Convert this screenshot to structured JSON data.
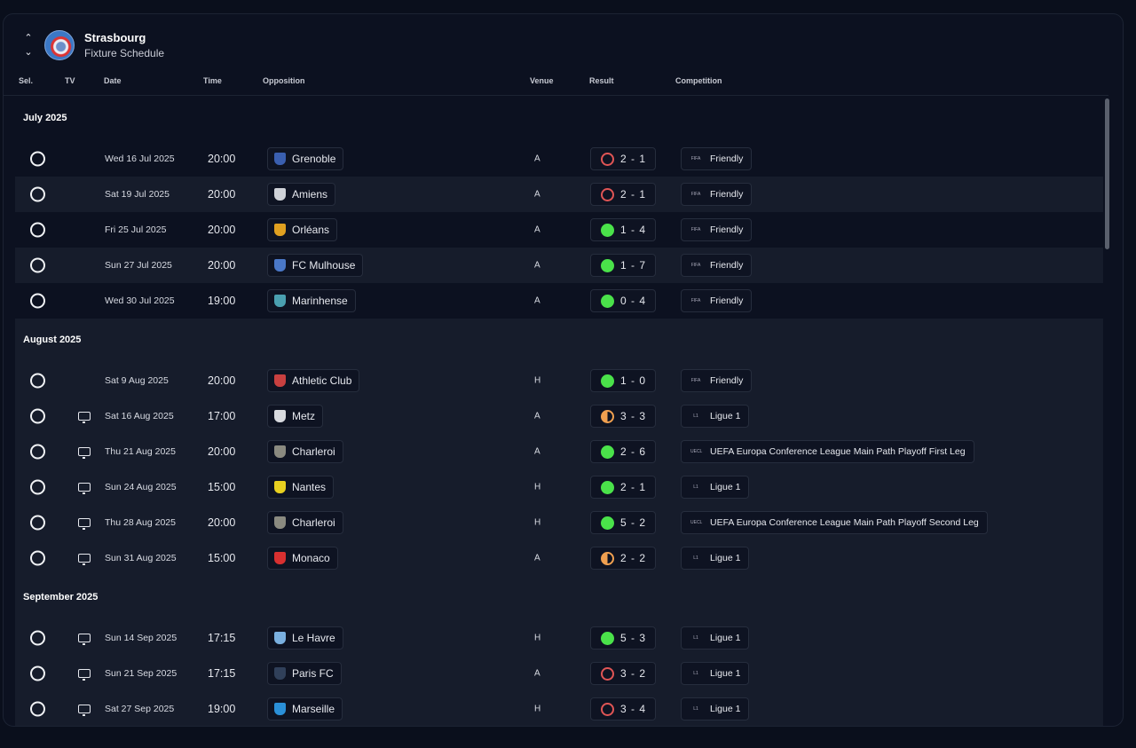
{
  "header": {
    "club": "Strasbourg",
    "subtitle": "Fixture Schedule"
  },
  "columns": {
    "sel": "Sel.",
    "tv": "TV",
    "date": "Date",
    "time": "Time",
    "opposition": "Opposition",
    "venue": "Venue",
    "result": "Result",
    "competition": "Competition"
  },
  "colors": {
    "win": "#4ae24a",
    "loss": "#e05555",
    "draw": "#f0a050"
  },
  "months": [
    {
      "label": "July 2025",
      "fixtures": [
        {
          "tv": false,
          "date": "Wed 16 Jul 2025",
          "time": "20:00",
          "opp": "Grenoble",
          "crest": "#3a5fb0",
          "venue": "A",
          "result": "2 - 1",
          "outcome": "loss",
          "comp": "Friendly",
          "logo": "FIFA"
        },
        {
          "tv": false,
          "date": "Sat 19 Jul 2025",
          "time": "20:00",
          "opp": "Amiens",
          "crest": "#cfd2d8",
          "venue": "A",
          "result": "2 - 1",
          "outcome": "loss",
          "comp": "Friendly",
          "logo": "FIFA"
        },
        {
          "tv": false,
          "date": "Fri 25 Jul 2025",
          "time": "20:00",
          "opp": "Orléans",
          "crest": "#e0a020",
          "venue": "A",
          "result": "1 - 4",
          "outcome": "win",
          "comp": "Friendly",
          "logo": "FIFA"
        },
        {
          "tv": false,
          "date": "Sun 27 Jul 2025",
          "time": "20:00",
          "opp": "FC Mulhouse",
          "crest": "#4a78c8",
          "venue": "A",
          "result": "1 - 7",
          "outcome": "win",
          "comp": "Friendly",
          "logo": "FIFA"
        },
        {
          "tv": false,
          "date": "Wed 30 Jul 2025",
          "time": "19:00",
          "opp": "Marinhense",
          "crest": "#4aa0b0",
          "venue": "A",
          "result": "0 - 4",
          "outcome": "win",
          "comp": "Friendly",
          "logo": "FIFA"
        }
      ]
    },
    {
      "label": "August 2025",
      "fixtures": [
        {
          "tv": false,
          "date": "Sat 9 Aug 2025",
          "time": "20:00",
          "opp": "Athletic Club",
          "crest": "#c84040",
          "venue": "H",
          "result": "1 - 0",
          "outcome": "win",
          "comp": "Friendly",
          "logo": "FIFA"
        },
        {
          "tv": true,
          "date": "Sat 16 Aug 2025",
          "time": "17:00",
          "opp": "Metz",
          "crest": "#d8dadf",
          "venue": "A",
          "result": "3 - 3",
          "outcome": "draw",
          "comp": "Ligue 1",
          "logo": "L1"
        },
        {
          "tv": true,
          "date": "Thu 21 Aug 2025",
          "time": "20:00",
          "opp": "Charleroi",
          "crest": "#8a8a80",
          "venue": "A",
          "result": "2 - 6",
          "outcome": "win",
          "comp": "UEFA Europa Conference League Main Path Playoff First Leg",
          "logo": "UECL"
        },
        {
          "tv": true,
          "date": "Sun 24 Aug 2025",
          "time": "15:00",
          "opp": "Nantes",
          "crest": "#e8d020",
          "venue": "H",
          "result": "2 - 1",
          "outcome": "win",
          "comp": "Ligue 1",
          "logo": "L1"
        },
        {
          "tv": true,
          "date": "Thu 28 Aug 2025",
          "time": "20:00",
          "opp": "Charleroi",
          "crest": "#8a8a80",
          "venue": "H",
          "result": "5 - 2",
          "outcome": "win",
          "comp": "UEFA Europa Conference League Main Path Playoff Second Leg",
          "logo": "UECL"
        },
        {
          "tv": true,
          "date": "Sun 31 Aug 2025",
          "time": "15:00",
          "opp": "Monaco",
          "crest": "#d83030",
          "venue": "A",
          "result": "2 - 2",
          "outcome": "draw",
          "comp": "Ligue 1",
          "logo": "L1"
        }
      ]
    },
    {
      "label": "September 2025",
      "fixtures": [
        {
          "tv": true,
          "date": "Sun 14 Sep 2025",
          "time": "17:15",
          "opp": "Le Havre",
          "crest": "#7ab0e0",
          "venue": "H",
          "result": "5 - 3",
          "outcome": "win",
          "comp": "Ligue 1",
          "logo": "L1"
        },
        {
          "tv": true,
          "date": "Sun 21 Sep 2025",
          "time": "17:15",
          "opp": "Paris FC",
          "crest": "#30405a",
          "venue": "A",
          "result": "3 - 2",
          "outcome": "loss",
          "comp": "Ligue 1",
          "logo": "L1"
        },
        {
          "tv": true,
          "date": "Sat 27 Sep 2025",
          "time": "19:00",
          "opp": "Marseille",
          "crest": "#2a90d8",
          "venue": "H",
          "result": "3 - 4",
          "outcome": "loss",
          "comp": "Ligue 1",
          "logo": "L1"
        }
      ]
    }
  ]
}
